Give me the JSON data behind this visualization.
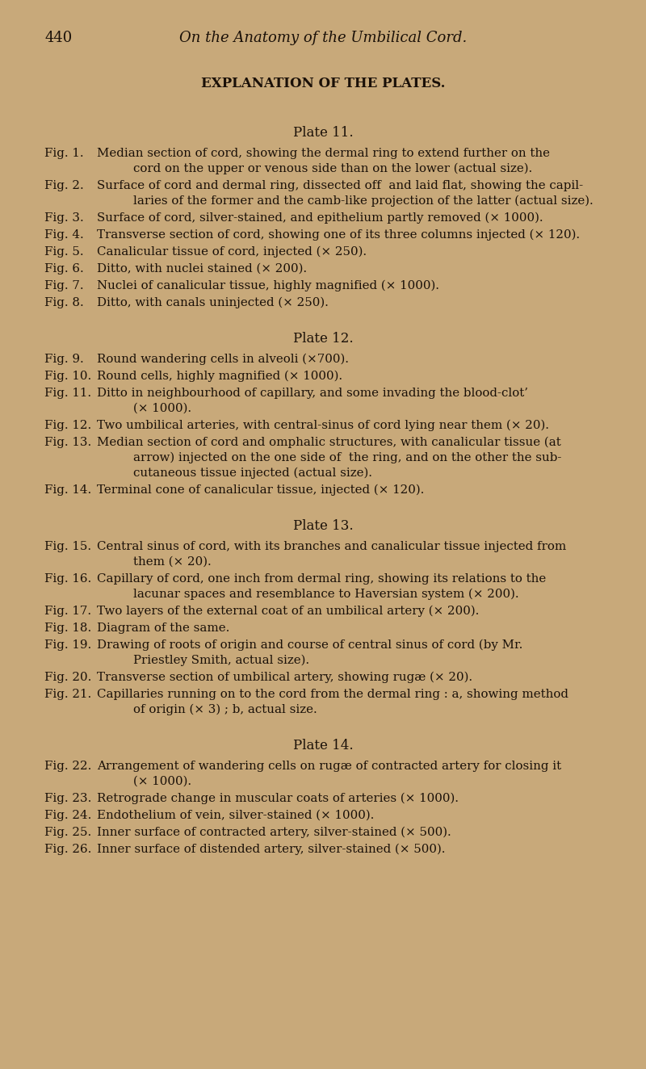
{
  "bg_color": "#C8A97A",
  "text_color": "#1a1008",
  "page_number": "440",
  "page_header": "On the Anatomy of the Umbilical Cord.",
  "main_title": "EXPLANATION OF THE PLATES.",
  "sections": [
    {
      "heading": "Plate 11.",
      "entries": [
        {
          "fig": "Fig. 1.",
          "text": "Median section of cord, showing the dermal ring to extend further on the\ncord on the upper or venous side than on the lower (actual size)."
        },
        {
          "fig": "Fig. 2.",
          "text": "Surface of cord and dermal ring, dissected off  and laid flat, showing the capil-\nlaries of the former and the camb-like projection of the latter (actual size)."
        },
        {
          "fig": "Fig. 3.",
          "text": "Surface of cord, silver-stained, and epithelium partly removed (× 1000)."
        },
        {
          "fig": "Fig. 4.",
          "text": "Transverse section of cord, showing one of its three columns injected (× 120)."
        },
        {
          "fig": "Fig. 5.",
          "text": "Canalicular tissue of cord, injected (× 250)."
        },
        {
          "fig": "Fig. 6.",
          "text": "Ditto, with nuclei stained (× 200)."
        },
        {
          "fig": "Fig. 7.",
          "text": "Nuclei of canalicular tissue, highly magnified (× 1000)."
        },
        {
          "fig": "Fig. 8.",
          "text": "Ditto, with canals uninjected (× 250)."
        }
      ]
    },
    {
      "heading": "Plate 12.",
      "entries": [
        {
          "fig": "Fig. 9.",
          "text": "Round wandering cells in alveoli (×700)."
        },
        {
          "fig": "Fig. 10.",
          "text": "Round cells, highly magnified (× 1000)."
        },
        {
          "fig": "Fig. 11.",
          "text": "Ditto in neighbourhood of capillary, and some invading the blood-clot’\n(× 1000)."
        },
        {
          "fig": "Fig. 12.",
          "text": "Two umbilical arteries, with central‑sinus of cord lying near them (× 20)."
        },
        {
          "fig": "Fig. 13.",
          "text": "Median section of cord and omphalic structures, with canalicular tissue (at\narrow) injected on the one side of  the ring, and on the other the sub-\ncutaneous tissue injected (actual size)."
        },
        {
          "fig": "Fig. 14.",
          "text": "Terminal cone of canalicular tissue, injected (× 120)."
        }
      ]
    },
    {
      "heading": "Plate 13.",
      "entries": [
        {
          "fig": "Fig. 15.",
          "text": "Central sinus of cord, with its branches and canalicular tissue injected from\nthem (× 20)."
        },
        {
          "fig": "Fig. 16.",
          "text": "Capillary of cord, one inch from dermal ring, showing its relations to the\nlacunar spaces and resemblance to Haversian system (× 200)."
        },
        {
          "fig": "Fig. 17.",
          "text": "Two layers of the external coat of an umbilical artery (× 200)."
        },
        {
          "fig": "Fig. 18.",
          "text": "Diagram of the same."
        },
        {
          "fig": "Fig. 19.",
          "text": "Drawing of roots of origin and course of central sinus of cord (by Mr.\nPriestley Smith, actual size)."
        },
        {
          "fig": "Fig. 20.",
          "text": "Transverse section of umbilical artery, showing rugæ (× 20)."
        },
        {
          "fig": "Fig. 21.",
          "text": "Capillaries running on to the cord from the dermal ring : a, showing method\nof origin (× 3) ; b, actual size."
        }
      ]
    },
    {
      "heading": "Plate 14.",
      "entries": [
        {
          "fig": "Fig. 22.",
          "text": "Arrangement of wandering cells on rugæ of contracted artery for closing it\n(× 1000)."
        },
        {
          "fig": "Fig. 23.",
          "text": "Retrograde change in muscular coats of arteries (× 1000)."
        },
        {
          "fig": "Fig. 24.",
          "text": "Endothelium of vein, silver-stained (× 1000)."
        },
        {
          "fig": "Fig. 25.",
          "text": "Inner surface of contracted artery, silver-stained (× 500)."
        },
        {
          "fig": "Fig. 26.",
          "text": "Inner surface of distended artery, silver-stained (× 500)."
        }
      ]
    }
  ]
}
